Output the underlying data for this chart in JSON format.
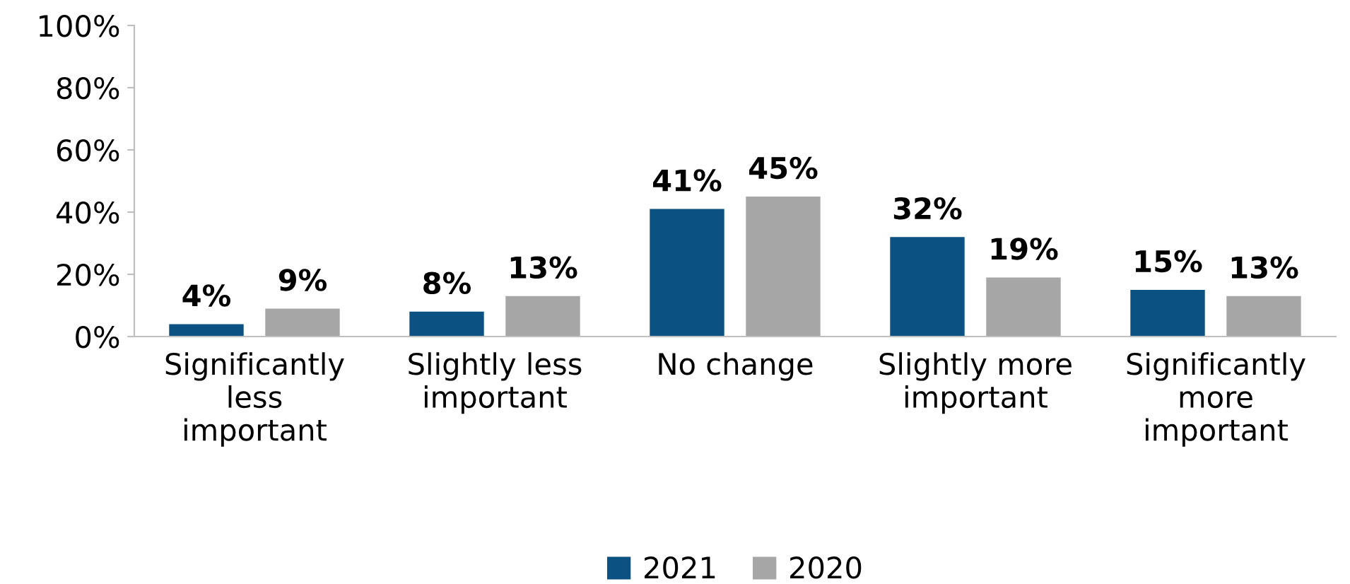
{
  "chart_data": {
    "type": "bar",
    "categories": [
      "Significantly\nless\nimportant",
      "Slightly less\nimportant",
      "No change",
      "Slightly more\nimportant",
      "Significantly\nmore\nimportant"
    ],
    "series": [
      {
        "name": "2021",
        "color": "#0b5283",
        "values": [
          4,
          8,
          41,
          32,
          15
        ],
        "value_labels": [
          "4%",
          "8%",
          "41%",
          "32%",
          "15%"
        ]
      },
      {
        "name": "2020",
        "color": "#a6a6a6",
        "values": [
          9,
          13,
          45,
          19,
          13
        ],
        "value_labels": [
          "9%",
          "13%",
          "45%",
          "19%",
          "13%"
        ]
      }
    ],
    "ylim": [
      0,
      100
    ],
    "yticks": [
      {
        "value": 0,
        "label": "0%"
      },
      {
        "value": 20,
        "label": "20%"
      },
      {
        "value": 40,
        "label": "40%"
      },
      {
        "value": 60,
        "label": "60%"
      },
      {
        "value": 80,
        "label": "80%"
      },
      {
        "value": 100,
        "label": "100%"
      }
    ],
    "grid": false,
    "legend": "bottom"
  }
}
